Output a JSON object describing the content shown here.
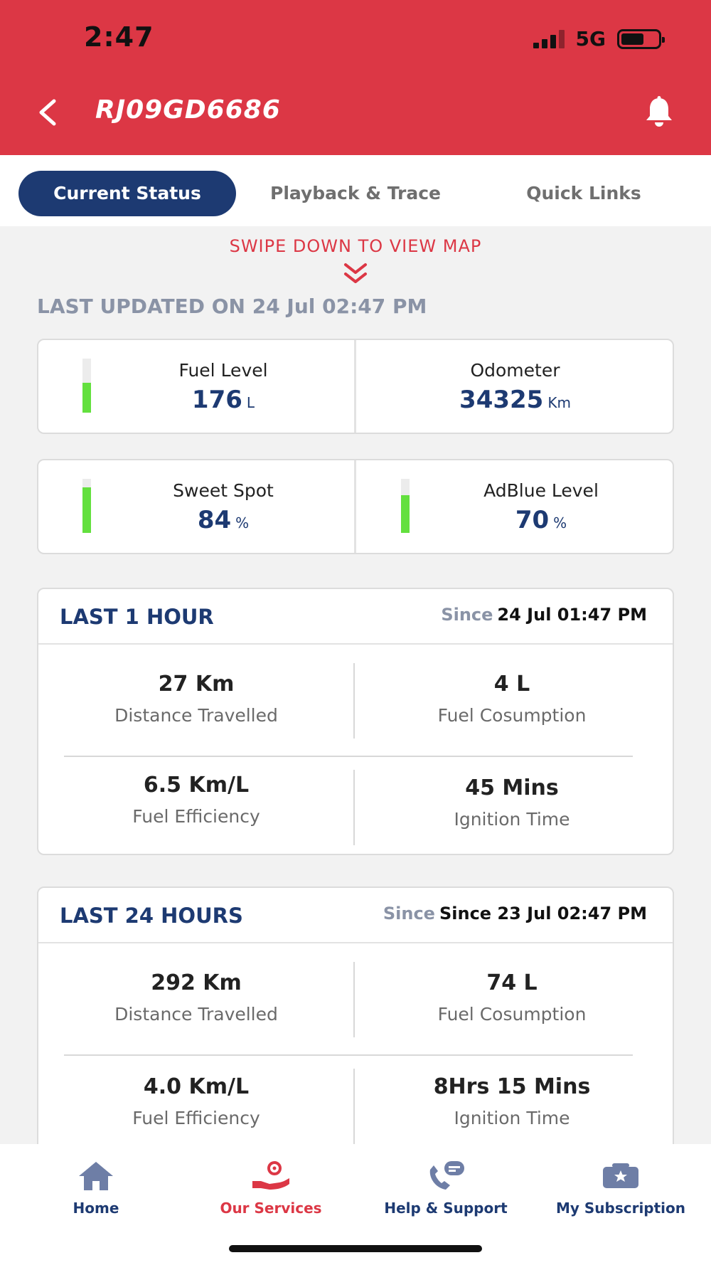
{
  "status_bar": {
    "time": "2:47",
    "network": "5G"
  },
  "header": {
    "title": "RJ09GD6686"
  },
  "tabs": [
    {
      "label": "Current Status",
      "active": true
    },
    {
      "label": "Playback & Trace",
      "active": false
    },
    {
      "label": "Quick Links",
      "active": false
    }
  ],
  "swipe_hint": "SWIPE DOWN TO VIEW MAP",
  "last_updated": "LAST UPDATED ON 24 Jul 02:47 PM",
  "metrics": {
    "fuel": {
      "label": "Fuel Level",
      "value": "176",
      "unit": "L",
      "gauge_fraction": 0.55
    },
    "odometer": {
      "label": "Odometer",
      "value": "34325",
      "unit": "Km"
    },
    "sweet_spot": {
      "label": "Sweet Spot",
      "value": "84",
      "unit": "%",
      "gauge_fraction": 0.84
    },
    "adblue": {
      "label": "AdBlue Level",
      "value": "70",
      "unit": "%",
      "gauge_fraction": 0.7
    }
  },
  "last_1_hour": {
    "title": "LAST 1 HOUR",
    "since_word": "Since",
    "since_value": "24 Jul 01:47 PM",
    "distance": {
      "value": "27 Km",
      "label": "Distance Travelled"
    },
    "fuel": {
      "value": "4 L",
      "label": "Fuel Cosumption"
    },
    "efficiency": {
      "value": "6.5 Km/L",
      "label": "Fuel Efficiency"
    },
    "ignition": {
      "value": "45 Mins",
      "label": "Ignition Time"
    }
  },
  "last_24_hours": {
    "title": "LAST 24 HOURS",
    "since_word": "Since",
    "since_value": "Since 23 Jul 02:47 PM",
    "distance": {
      "value": "292 Km",
      "label": "Distance Travelled"
    },
    "fuel": {
      "value": "74 L",
      "label": "Fuel Cosumption"
    },
    "efficiency": {
      "value": "4.0 Km/L",
      "label": "Fuel Efficiency"
    },
    "ignition": {
      "value": "8Hrs 15 Mins",
      "label": "Ignition Time"
    }
  },
  "bottom_nav": [
    {
      "label": "Home",
      "icon": "home-icon",
      "active": false
    },
    {
      "label": "Our Services",
      "icon": "services-icon",
      "active": true
    },
    {
      "label": "Help & Support",
      "icon": "support-icon",
      "active": false
    },
    {
      "label": "My Subscription",
      "icon": "subscription-icon",
      "active": false
    }
  ],
  "colors": {
    "brand_red": "#dc3745",
    "navy": "#1d3a72",
    "gauge_green": "#63e03e",
    "muted": "#8a93a6"
  }
}
